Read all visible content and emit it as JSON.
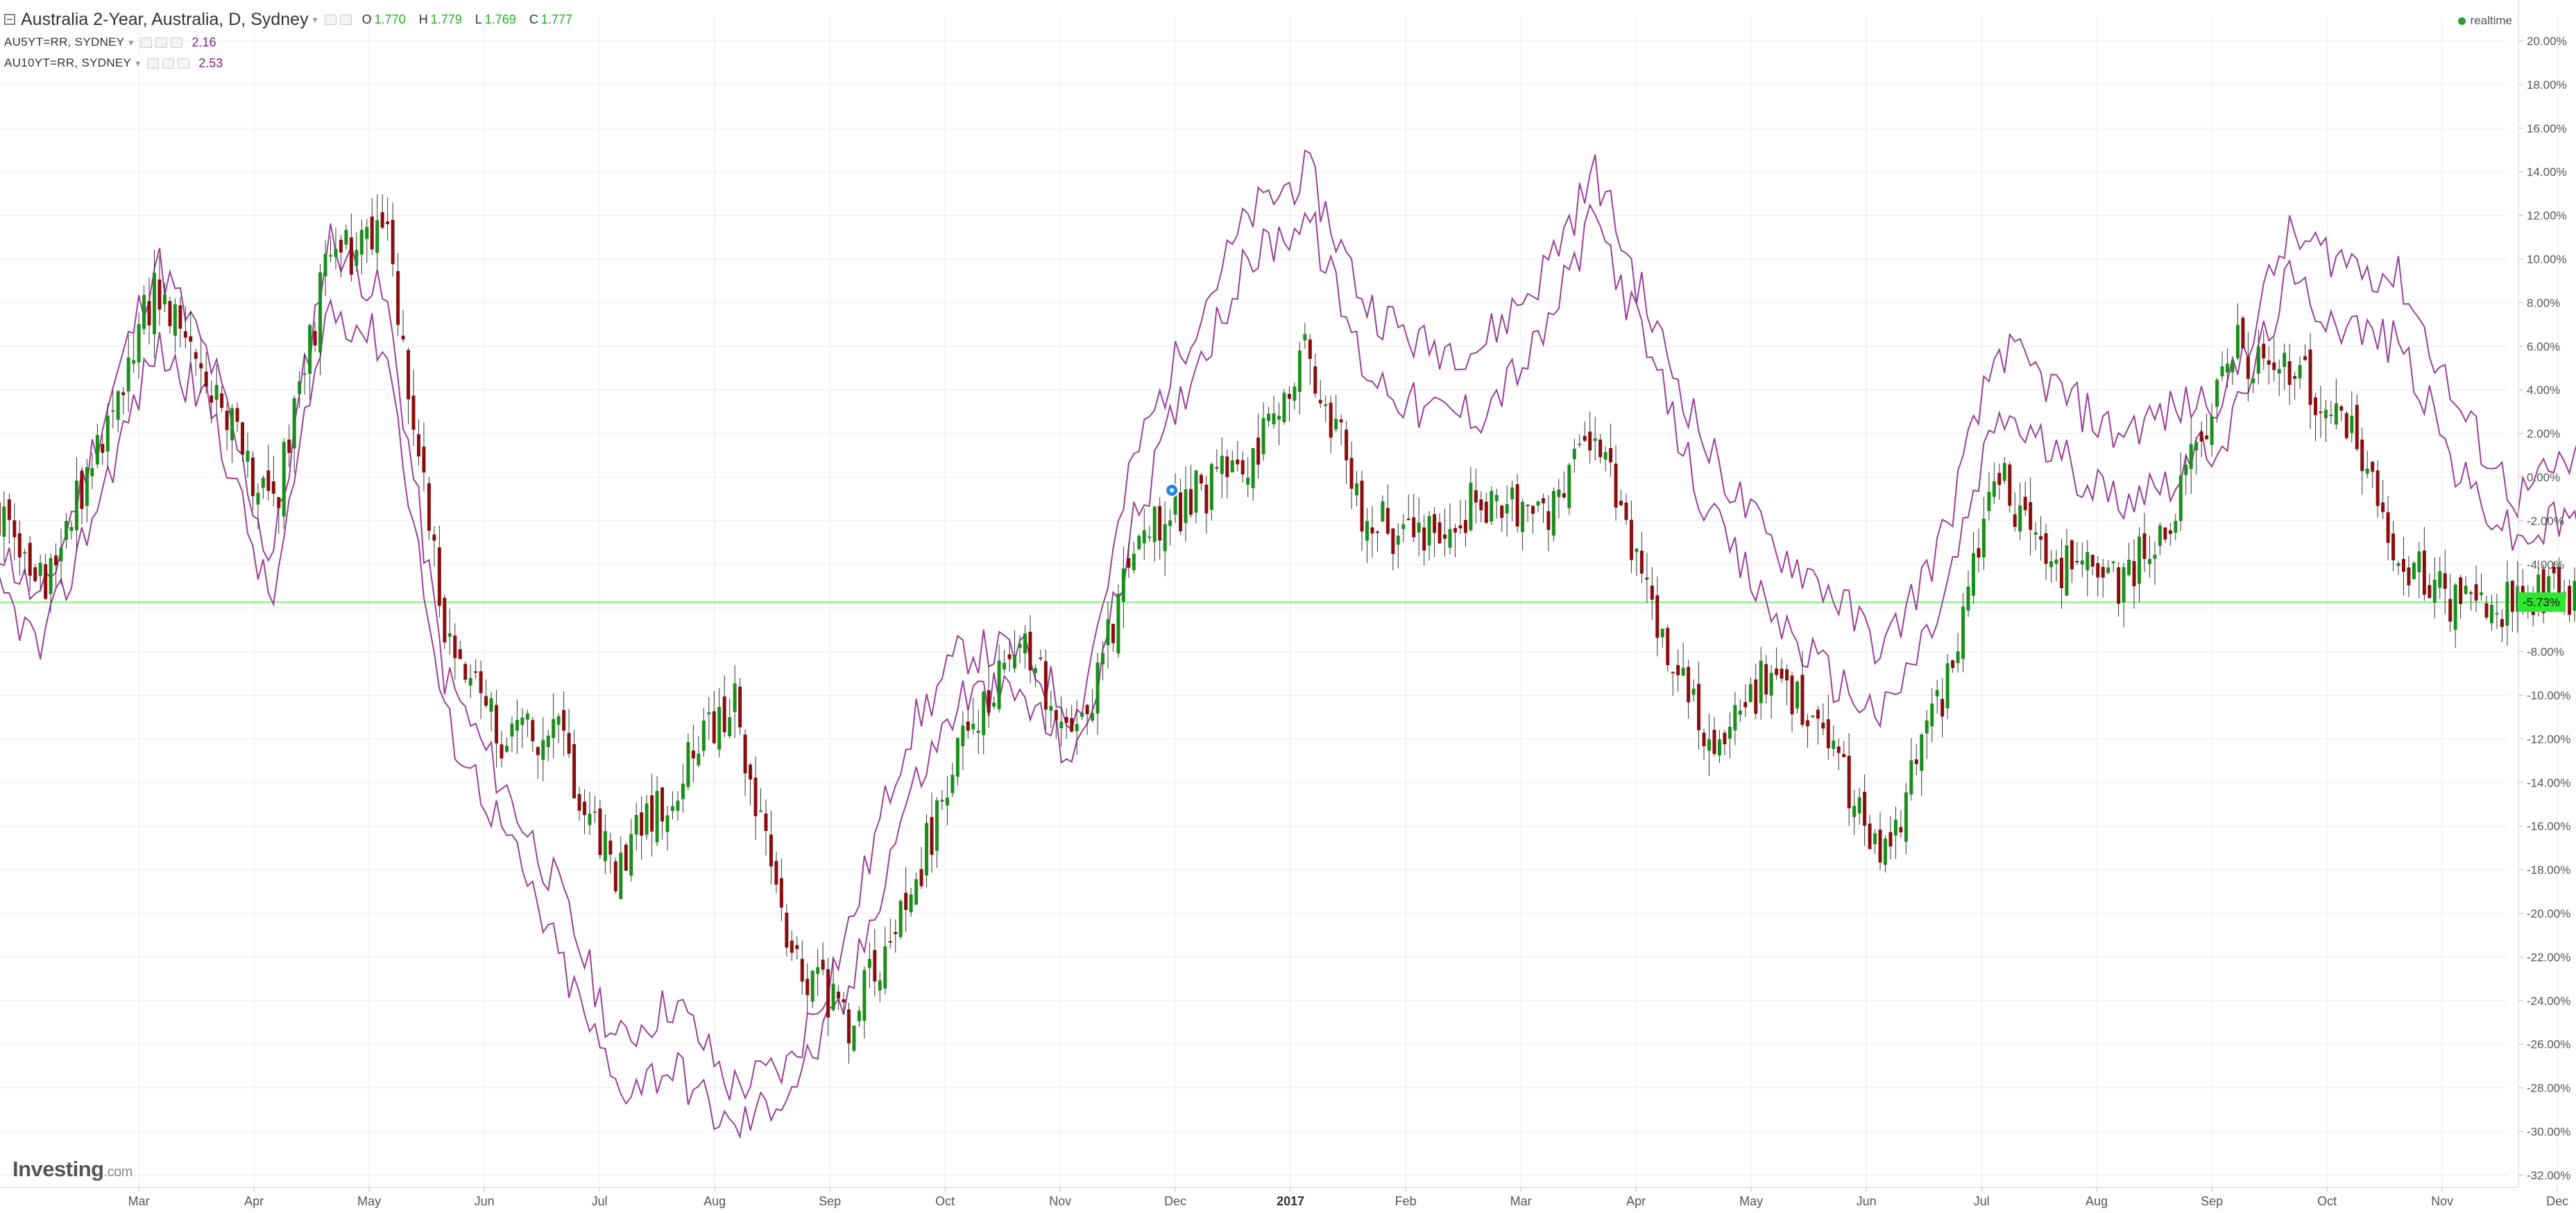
{
  "header": {
    "title": "Australia 2-Year, Australia, D, Sydney",
    "ohlc": [
      {
        "label": "O",
        "value": "1.770"
      },
      {
        "label": "H",
        "value": "1.779"
      },
      {
        "label": "L",
        "value": "1.769"
      },
      {
        "label": "C",
        "value": "1.777"
      }
    ],
    "series": [
      {
        "name": "AU5YT=RR, SYDNEY",
        "value": "2.16"
      },
      {
        "name": "AU10YT=RR, SYDNEY",
        "value": "2.53"
      }
    ],
    "realtime_label": "realtime"
  },
  "brand": {
    "name": "Investing",
    "suffix": ".com"
  },
  "colors": {
    "up": "#1b8f1b",
    "down": "#8b0e0e",
    "compare_line": "#9b3f9b",
    "current_price_line": "#2ee82e",
    "grid": "#ececec"
  },
  "chart_data": {
    "type": "candlestick",
    "y_axis": {
      "unit": "percent change",
      "ticks": [
        "20.00%",
        "18.00%",
        "16.00%",
        "14.00%",
        "12.00%",
        "10.00%",
        "8.00%",
        "6.00%",
        "4.00%",
        "2.00%",
        "0.00%",
        "-2.00%",
        "-4.00%",
        "-6.00%",
        "-8.00%",
        "-10.00%",
        "-12.00%",
        "-14.00%",
        "-16.00%",
        "-18.00%",
        "-20.00%",
        "-22.00%",
        "-24.00%",
        "-26.00%",
        "-28.00%",
        "-30.00%",
        "-32.00%"
      ],
      "range": [
        -33,
        21
      ]
    },
    "x_axis": {
      "labels": [
        {
          "text": "Mar",
          "bold": false
        },
        {
          "text": "Apr",
          "bold": false
        },
        {
          "text": "May",
          "bold": false
        },
        {
          "text": "Jun",
          "bold": false
        },
        {
          "text": "Jul",
          "bold": false
        },
        {
          "text": "Aug",
          "bold": false
        },
        {
          "text": "Sep",
          "bold": false
        },
        {
          "text": "Oct",
          "bold": false
        },
        {
          "text": "Nov",
          "bold": false
        },
        {
          "text": "Dec",
          "bold": false
        },
        {
          "text": "2017",
          "bold": true
        },
        {
          "text": "Feb",
          "bold": false
        },
        {
          "text": "Mar",
          "bold": false
        },
        {
          "text": "Apr",
          "bold": false
        },
        {
          "text": "May",
          "bold": false
        },
        {
          "text": "Jun",
          "bold": false
        },
        {
          "text": "Jul",
          "bold": false
        },
        {
          "text": "Aug",
          "bold": false
        },
        {
          "text": "Sep",
          "bold": false
        },
        {
          "text": "Oct",
          "bold": false
        },
        {
          "text": "Nov",
          "bold": false
        },
        {
          "text": "Dec",
          "bold": false
        }
      ],
      "label_positions_months": [
        0.35,
        1.35,
        2.35,
        3.35,
        4.35,
        5.35,
        6.35,
        7.35,
        8.35,
        9.35,
        10.35,
        11.35,
        12.35,
        13.35,
        14.35,
        15.35,
        16.35,
        17.35,
        18.35,
        19.35,
        20.35,
        21.35
      ]
    },
    "current_value": -5.73,
    "current_value_label": "-5.73%",
    "grid": true,
    "series": [
      {
        "role": "main_candles",
        "months": [
          -1.0,
          -0.5,
          0.0,
          0.5,
          1.0,
          1.5,
          2.0,
          2.5,
          3.0,
          3.5,
          4.0,
          4.5,
          5.0,
          5.5,
          6.0,
          6.5,
          7.0,
          7.5,
          8.0,
          8.5,
          9.0,
          9.5,
          10.0,
          10.5,
          11.0,
          11.5,
          12.0,
          12.5,
          13.0,
          13.5,
          14.0,
          14.5,
          15.0,
          15.5,
          16.0,
          16.5,
          17.0,
          17.5,
          18.0,
          18.5,
          19.0,
          19.5,
          20.0,
          20.5,
          21.0,
          21.5,
          21.8
        ],
        "values": [
          -1,
          -5,
          1,
          9,
          4,
          -2,
          10,
          11,
          -7,
          -12,
          -12,
          -18,
          -14,
          -10,
          -22,
          -25,
          -20,
          -12,
          -8,
          -12,
          -3,
          -1,
          1,
          6,
          -2,
          -3,
          -1,
          -2,
          2,
          -6,
          -12,
          -9,
          -12,
          -18,
          -10,
          0,
          -4,
          -5,
          -2,
          6,
          5,
          3,
          -4,
          -5.7,
          -5.73,
          -5.5,
          -5.73
        ]
      },
      {
        "role": "compare_line_1",
        "months": [
          -1.0,
          -0.5,
          0.0,
          0.5,
          1.0,
          1.5,
          2.0,
          2.5,
          3.0,
          3.5,
          4.0,
          4.5,
          5.0,
          5.5,
          6.0,
          6.5,
          7.0,
          7.5,
          8.0,
          8.5,
          9.0,
          9.5,
          10.0,
          10.5,
          11.0,
          11.5,
          12.0,
          12.5,
          13.0,
          13.5,
          14.0,
          14.5,
          15.0,
          15.5,
          16.0,
          16.5,
          17.0,
          17.5,
          18.0,
          18.5,
          19.0,
          19.5,
          20.0,
          20.5,
          21.0,
          21.4,
          21.8
        ],
        "values": [
          -2,
          -6,
          2,
          10,
          5,
          -4,
          11,
          8,
          -9,
          -14,
          -19,
          -26,
          -24,
          -28,
          -27,
          -21,
          -12,
          -8,
          -8,
          -11,
          1,
          7,
          12,
          14,
          8,
          6,
          6,
          9,
          14,
          7,
          1,
          -3,
          -5,
          -8,
          -3,
          6,
          4,
          2,
          3,
          4,
          11,
          10,
          9,
          3,
          -1,
          0.5,
          1.6
        ]
      },
      {
        "role": "compare_line_2",
        "months": [
          -1.0,
          -0.5,
          0.0,
          0.5,
          1.0,
          1.5,
          2.0,
          2.5,
          3.0,
          3.5,
          4.0,
          4.5,
          5.0,
          5.5,
          6.0,
          6.5,
          7.0,
          7.5,
          8.0,
          8.5,
          9.0,
          9.5,
          10.0,
          10.5,
          11.0,
          11.5,
          12.0,
          12.5,
          13.0,
          13.5,
          14.0,
          14.5,
          15.0,
          15.5,
          16.0,
          16.5,
          17.0,
          17.5,
          18.0,
          18.5,
          19.0,
          19.5,
          20.0,
          20.5,
          21.0,
          21.4,
          21.8
        ],
        "values": [
          -4,
          -8,
          -1,
          6,
          3,
          -6,
          8,
          6,
          -11,
          -16,
          -22,
          -28,
          -27,
          -30,
          -28,
          -24,
          -15,
          -10,
          -10,
          -13,
          -2,
          5,
          10,
          12,
          5,
          3,
          3,
          6,
          12,
          5,
          -2,
          -6,
          -9,
          -11,
          -6,
          3,
          1,
          -1,
          0,
          2,
          9,
          7,
          6,
          0,
          -3,
          -2,
          -2.5
        ]
      }
    ]
  }
}
